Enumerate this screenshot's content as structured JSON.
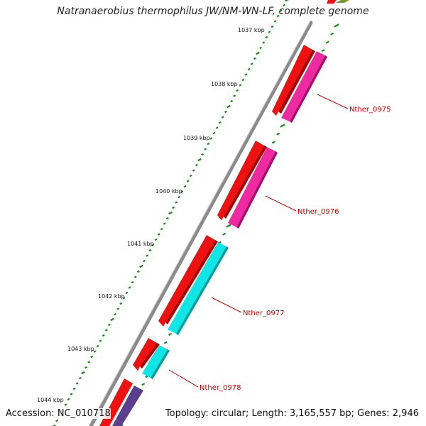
{
  "title": "Natranaerobius thermophilus JW/NM-WN-LF, complete genome",
  "accession": "Accession: NC_010718",
  "summary": "Topology: circular; Length: 3,165,557 bp; Genes: 2,946",
  "colors": {
    "backbone": "#8a8a8a",
    "tick": "#1f8a1f",
    "gene_red": "#ee1111",
    "gene_pink": "#ee2aa0",
    "gene_cyan": "#11e6e6",
    "gene_purple": "#5a3f8f",
    "gene_olive": "#7a9a2a",
    "label": "#cc0000"
  },
  "ticks": [
    {
      "label": "1037 kbp"
    },
    {
      "label": "1038 kbp"
    },
    {
      "label": "1039 kbp"
    },
    {
      "label": "1040 kbp"
    },
    {
      "label": "1041 kbp"
    },
    {
      "label": "1042 kbp"
    },
    {
      "label": "1043 kbp"
    },
    {
      "label": "1044 kbp"
    }
  ],
  "gene_labels": [
    {
      "label": "Nther_0975"
    },
    {
      "label": "Nther_0976"
    },
    {
      "label": "Nther_0977"
    },
    {
      "label": "Nther_0978"
    }
  ]
}
